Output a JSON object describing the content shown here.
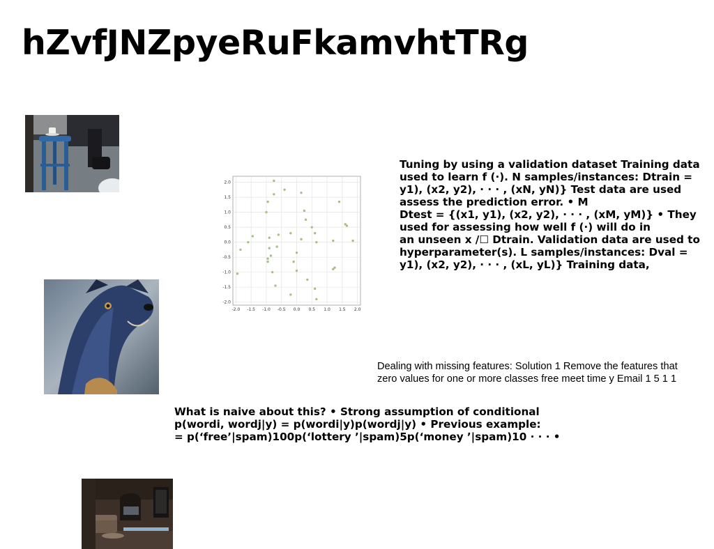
{
  "title": "hZvfJNZpyeRuFkamvhtTRg",
  "paragraphs": {
    "tuning": "Tuning by using a validation dataset Training data\nused to learn f (·). N samples/instances: Dtrain =\ny1), (x2, y2), · · · , (xN, yN)} Test data are used\nassess the prediction error. • M\nDtest = {(x1, y1), (x2, y2), · · · , (xM, yM)} • They\nused for assessing how well f (·) will do in\nan unseen x /☐ Dtrain. Validation data are used to\nhyperparameter(s). L samples/instances: Dval =\ny1), (x2, y2), · · · , (xL, yL)} Training data,",
    "missing": "Dealing with missing features: Solution 1 Remove the features that\nzero values for one or more classes free meet time y Email 1 5 1 1",
    "naive": "What is naive about this? • Strong assumption of conditional\np(wordi, wordj|y) = p(wordi|y)p(wordj|y) • Previous example:\n= p(‘free’|spam)100p(‘lottery ’|spam)5p(‘money ’|spam)10 · · · •"
  },
  "images": {
    "photo1": "stool-photo",
    "photo2": "dog-photo",
    "photo3": "room-photo"
  },
  "chart_data": {
    "type": "scatter",
    "title": "",
    "xlabel": "",
    "ylabel": "",
    "xlim": [
      -2.1,
      2.1
    ],
    "ylim": [
      -2.1,
      2.2
    ],
    "xticks": [
      "-2.0",
      "-1.5",
      "-1.0",
      "-0.5",
      "0.0",
      "0.5",
      "1.0",
      "1.5",
      "2.0"
    ],
    "yticks": [
      "2.0",
      "1.5",
      "1.0",
      "0.5",
      "0.0",
      "-0.5",
      "-1.0",
      "-1.5",
      "-2.0"
    ],
    "grid": true,
    "color": "#a7c08a",
    "points": [
      [
        -1.95,
        -1.05
      ],
      [
        -1.85,
        -0.25
      ],
      [
        -1.6,
        0.0
      ],
      [
        -1.45,
        0.2
      ],
      [
        -1.0,
        1.0
      ],
      [
        -0.95,
        1.35
      ],
      [
        -0.95,
        -0.55
      ],
      [
        -0.95,
        -0.65
      ],
      [
        -0.9,
        -0.2
      ],
      [
        -0.9,
        0.15
      ],
      [
        -0.85,
        -0.45
      ],
      [
        -0.8,
        -1.0
      ],
      [
        -0.75,
        1.6
      ],
      [
        -0.75,
        2.05
      ],
      [
        -0.7,
        -1.45
      ],
      [
        -0.65,
        -0.15
      ],
      [
        -0.6,
        0.25
      ],
      [
        -0.4,
        1.75
      ],
      [
        -0.2,
        -1.75
      ],
      [
        -0.2,
        0.3
      ],
      [
        -0.1,
        -0.65
      ],
      [
        0.0,
        -0.35
      ],
      [
        0.0,
        -0.95
      ],
      [
        0.15,
        0.1
      ],
      [
        0.15,
        1.65
      ],
      [
        0.25,
        1.05
      ],
      [
        0.3,
        0.75
      ],
      [
        0.35,
        -1.25
      ],
      [
        0.5,
        0.5
      ],
      [
        0.6,
        0.3
      ],
      [
        0.6,
        -1.55
      ],
      [
        0.65,
        -1.9
      ],
      [
        0.65,
        0.0
      ],
      [
        1.2,
        0.05
      ],
      [
        1.2,
        -0.9
      ],
      [
        1.25,
        -0.85
      ],
      [
        1.4,
        1.35
      ],
      [
        1.6,
        0.6
      ],
      [
        1.65,
        0.55
      ],
      [
        1.85,
        0.05
      ]
    ]
  }
}
